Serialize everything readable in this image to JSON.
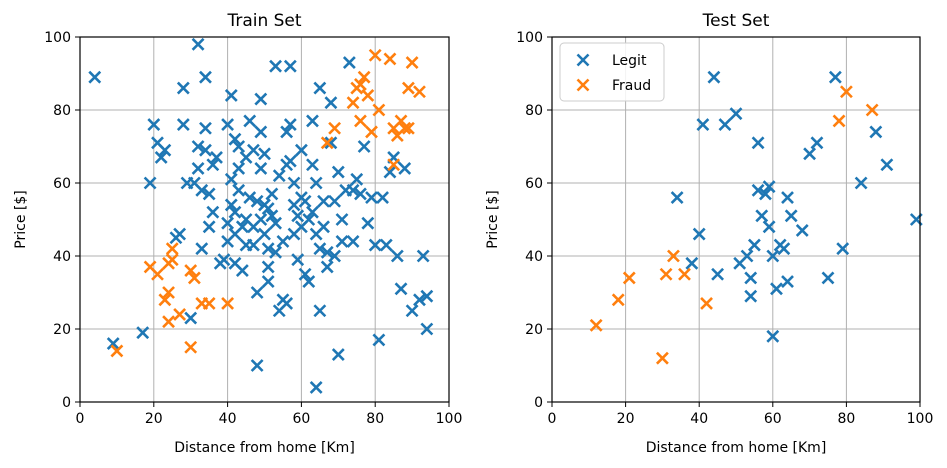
{
  "chart_data": [
    {
      "type": "scatter",
      "title": "Train Set",
      "xlabel": "Distance from home [Km]",
      "ylabel": "Price [$]",
      "xlim": [
        0,
        100
      ],
      "ylim": [
        0,
        100
      ],
      "xticks": [
        "0",
        "20",
        "40",
        "60",
        "80",
        "100"
      ],
      "yticks": [
        "0",
        "20",
        "40",
        "60",
        "80",
        "100"
      ],
      "grid": true,
      "legend": null,
      "marker": "x",
      "series": [
        {
          "color": "#1f77b4",
          "points": [
            [
              4,
              89
            ],
            [
              9,
              16
            ],
            [
              17,
              19
            ],
            [
              19,
              60
            ],
            [
              20,
              76
            ],
            [
              21,
              71
            ],
            [
              22,
              67
            ],
            [
              23,
              69
            ],
            [
              26,
              45
            ],
            [
              27,
              46
            ],
            [
              28,
              86
            ],
            [
              28,
              76
            ],
            [
              29,
              60
            ],
            [
              30,
              23
            ],
            [
              31,
              60
            ],
            [
              32,
              98
            ],
            [
              32,
              70
            ],
            [
              32,
              64
            ],
            [
              33,
              42
            ],
            [
              33,
              58
            ],
            [
              34,
              89
            ],
            [
              34,
              75
            ],
            [
              34,
              69
            ],
            [
              35,
              57
            ],
            [
              35,
              48
            ],
            [
              36,
              52
            ],
            [
              36,
              65
            ],
            [
              37,
              67
            ],
            [
              38,
              38
            ],
            [
              39,
              39
            ],
            [
              40,
              44
            ],
            [
              40,
              49
            ],
            [
              40,
              76
            ],
            [
              41,
              84
            ],
            [
              41,
              61
            ],
            [
              41,
              54
            ],
            [
              42,
              72
            ],
            [
              42,
              52
            ],
            [
              42,
              46
            ],
            [
              42,
              38
            ],
            [
              43,
              70
            ],
            [
              43,
              64
            ],
            [
              43,
              58
            ],
            [
              44,
              36
            ],
            [
              44,
              48
            ],
            [
              45,
              50
            ],
            [
              45,
              43
            ],
            [
              45,
              67
            ],
            [
              46,
              56
            ],
            [
              46,
              77
            ],
            [
              47,
              69
            ],
            [
              47,
              48
            ],
            [
              47,
              43
            ],
            [
              48,
              55
            ],
            [
              48,
              30
            ],
            [
              48,
              10
            ],
            [
              49,
              83
            ],
            [
              49,
              74
            ],
            [
              49,
              64
            ],
            [
              49,
              50
            ],
            [
              50,
              68
            ],
            [
              50,
              54
            ],
            [
              50,
              46
            ],
            [
              51,
              42
            ],
            [
              51,
              33
            ],
            [
              51,
              37
            ],
            [
              51,
              53
            ],
            [
              52,
              51
            ],
            [
              52,
              57
            ],
            [
              53,
              49
            ],
            [
              53,
              41
            ],
            [
              53,
              92
            ],
            [
              54,
              25
            ],
            [
              54,
              62
            ],
            [
              55,
              44
            ],
            [
              55,
              28
            ],
            [
              56,
              74
            ],
            [
              56,
              65
            ],
            [
              56,
              27
            ],
            [
              57,
              76
            ],
            [
              57,
              92
            ],
            [
              57,
              66
            ],
            [
              58,
              60
            ],
            [
              58,
              54
            ],
            [
              58,
              46
            ],
            [
              59,
              51
            ],
            [
              59,
              39
            ],
            [
              60,
              69
            ],
            [
              60,
              56
            ],
            [
              60,
              48
            ],
            [
              61,
              35
            ],
            [
              61,
              55
            ],
            [
              62,
              50
            ],
            [
              62,
              33
            ],
            [
              63,
              65
            ],
            [
              63,
              77
            ],
            [
              63,
              52
            ],
            [
              64,
              4
            ],
            [
              64,
              60
            ],
            [
              64,
              46
            ],
            [
              65,
              42
            ],
            [
              65,
              86
            ],
            [
              65,
              25
            ],
            [
              66,
              55
            ],
            [
              66,
              48
            ],
            [
              67,
              37
            ],
            [
              67,
              41
            ],
            [
              68,
              82
            ],
            [
              68,
              71
            ],
            [
              69,
              55
            ],
            [
              69,
              40
            ],
            [
              70,
              13
            ],
            [
              70,
              63
            ],
            [
              71,
              44
            ],
            [
              71,
              50
            ],
            [
              72,
              58
            ],
            [
              73,
              93
            ],
            [
              74,
              44
            ],
            [
              74,
              58
            ],
            [
              75,
              61
            ],
            [
              76,
              57
            ],
            [
              77,
              70
            ],
            [
              78,
              49
            ],
            [
              79,
              56
            ],
            [
              80,
              43
            ],
            [
              81,
              17
            ],
            [
              82,
              56
            ],
            [
              83,
              43
            ],
            [
              84,
              63
            ],
            [
              85,
              67
            ],
            [
              86,
              40
            ],
            [
              87,
              31
            ],
            [
              88,
              64
            ],
            [
              90,
              25
            ],
            [
              92,
              28
            ],
            [
              93,
              40
            ],
            [
              94,
              29
            ],
            [
              94,
              20
            ]
          ]
        },
        {
          "color": "#ff7f0e",
          "points": [
            [
              10,
              14
            ],
            [
              19,
              37
            ],
            [
              21,
              35
            ],
            [
              23,
              28
            ],
            [
              24,
              30
            ],
            [
              24,
              22
            ],
            [
              24,
              38
            ],
            [
              25,
              42
            ],
            [
              25,
              39
            ],
            [
              27,
              24
            ],
            [
              30,
              15
            ],
            [
              30,
              36
            ],
            [
              31,
              34
            ],
            [
              33,
              27
            ],
            [
              35,
              27
            ],
            [
              40,
              27
            ],
            [
              67,
              71
            ],
            [
              69,
              75
            ],
            [
              74,
              82
            ],
            [
              75,
              86
            ],
            [
              76,
              87
            ],
            [
              76,
              77
            ],
            [
              77,
              89
            ],
            [
              78,
              84
            ],
            [
              79,
              74
            ],
            [
              80,
              95
            ],
            [
              81,
              80
            ],
            [
              84,
              94
            ],
            [
              85,
              75
            ],
            [
              85,
              65
            ],
            [
              86,
              73
            ],
            [
              87,
              77
            ],
            [
              88,
              75
            ],
            [
              89,
              75
            ],
            [
              89,
              86
            ],
            [
              90,
              93
            ],
            [
              92,
              85
            ]
          ]
        }
      ]
    },
    {
      "type": "scatter",
      "title": "Test Set",
      "xlabel": "Distance from home [Km]",
      "ylabel": "Price [$]",
      "xlim": [
        0,
        100
      ],
      "ylim": [
        0,
        100
      ],
      "xticks": [
        "0",
        "20",
        "40",
        "60",
        "80",
        "100"
      ],
      "yticks": [
        "0",
        "20",
        "40",
        "60",
        "80",
        "100"
      ],
      "grid": true,
      "legend": "top-left",
      "marker": "x",
      "series": [
        {
          "name": "Legit",
          "color": "#1f77b4",
          "points": [
            [
              34,
              56
            ],
            [
              38,
              38
            ],
            [
              40,
              46
            ],
            [
              41,
              76
            ],
            [
              44,
              89
            ],
            [
              45,
              35
            ],
            [
              47,
              76
            ],
            [
              50,
              79
            ],
            [
              51,
              38
            ],
            [
              53,
              40
            ],
            [
              54,
              29
            ],
            [
              54,
              34
            ],
            [
              55,
              43
            ],
            [
              56,
              58
            ],
            [
              56,
              71
            ],
            [
              57,
              51
            ],
            [
              58,
              57
            ],
            [
              59,
              59
            ],
            [
              59,
              48
            ],
            [
              60,
              18
            ],
            [
              60,
              40
            ],
            [
              61,
              31
            ],
            [
              62,
              43
            ],
            [
              63,
              42
            ],
            [
              64,
              33
            ],
            [
              64,
              56
            ],
            [
              65,
              51
            ],
            [
              68,
              47
            ],
            [
              70,
              68
            ],
            [
              72,
              71
            ],
            [
              75,
              34
            ],
            [
              77,
              89
            ],
            [
              79,
              42
            ],
            [
              84,
              60
            ],
            [
              88,
              74
            ],
            [
              91,
              65
            ],
            [
              99,
              50
            ]
          ]
        },
        {
          "name": "Fraud",
          "color": "#ff7f0e",
          "points": [
            [
              12,
              21
            ],
            [
              18,
              28
            ],
            [
              21,
              34
            ],
            [
              30,
              12
            ],
            [
              31,
              35
            ],
            [
              33,
              40
            ],
            [
              36,
              35
            ],
            [
              42,
              27
            ],
            [
              78,
              77
            ],
            [
              80,
              85
            ],
            [
              87,
              80
            ]
          ]
        }
      ]
    }
  ]
}
